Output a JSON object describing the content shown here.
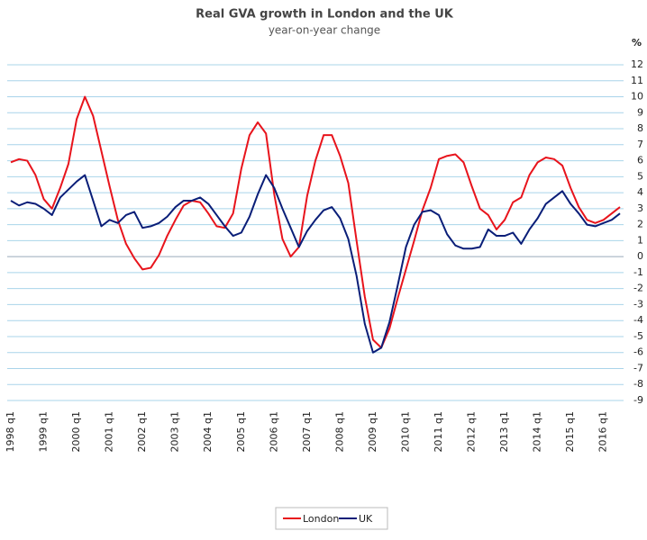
{
  "chart_data": {
    "type": "line",
    "title": "Real GVA growth in London and the UK",
    "subtitle": "year-on-year change",
    "ylabel": "%",
    "categories": [
      "1998 q1",
      null,
      null,
      null,
      "1999 q1",
      null,
      null,
      null,
      "2000 q1",
      null,
      null,
      null,
      "2001 q1",
      null,
      null,
      null,
      "2002 q1",
      null,
      null,
      null,
      "2003 q1",
      null,
      null,
      null,
      "2004 q1",
      null,
      null,
      null,
      "2005 q1",
      null,
      null,
      null,
      "2006 q1",
      null,
      null,
      null,
      "2007 q1",
      null,
      null,
      null,
      "2008 q1",
      null,
      null,
      null,
      "2009 q1",
      null,
      null,
      null,
      "2010 q1",
      null,
      null,
      null,
      "2011 q1",
      null,
      null,
      null,
      "2012 q1",
      null,
      null,
      null,
      "2013 q1",
      null,
      null,
      null,
      "2014 q1",
      null,
      null,
      null,
      "2015 q1",
      null,
      null,
      null,
      "2016 q1",
      null,
      null
    ],
    "series": [
      {
        "name": "London",
        "color": "#e8141c",
        "values": [
          5.9,
          6.1,
          6.0,
          5.1,
          3.6,
          3.0,
          4.3,
          5.8,
          8.6,
          10.0,
          8.8,
          6.6,
          4.4,
          2.3,
          0.8,
          -0.1,
          -0.8,
          -0.7,
          0.1,
          1.3,
          2.3,
          3.2,
          3.5,
          3.4,
          2.7,
          1.9,
          1.8,
          2.7,
          5.5,
          7.6,
          8.4,
          7.7,
          3.9,
          1.1,
          0.0,
          0.6,
          3.8,
          6.0,
          7.6,
          7.6,
          6.3,
          4.6,
          1.0,
          -2.5,
          -5.2,
          -5.7,
          -4.5,
          -2.6,
          -0.8,
          1.0,
          2.9,
          4.3,
          6.1,
          6.3,
          6.4,
          5.9,
          4.4,
          3.0,
          2.6,
          1.7,
          2.3,
          3.4,
          3.7,
          5.1,
          5.9,
          6.2,
          6.1,
          5.7,
          4.3,
          3.1,
          2.3,
          2.1,
          2.3,
          2.7,
          3.1
        ]
      },
      {
        "name": "UK",
        "color": "#0a1e78",
        "values": [
          3.5,
          3.2,
          3.4,
          3.3,
          3.0,
          2.6,
          3.7,
          4.2,
          4.7,
          5.1,
          3.5,
          1.9,
          2.3,
          2.1,
          2.6,
          2.8,
          1.8,
          1.9,
          2.1,
          2.5,
          3.1,
          3.5,
          3.5,
          3.7,
          3.3,
          2.6,
          1.9,
          1.3,
          1.5,
          2.5,
          3.9,
          5.1,
          4.3,
          3.0,
          1.8,
          0.6,
          1.6,
          2.3,
          2.9,
          3.1,
          2.4,
          1.1,
          -1.2,
          -4.2,
          -6.0,
          -5.7,
          -4.1,
          -1.8,
          0.6,
          2.0,
          2.8,
          2.9,
          2.6,
          1.4,
          0.7,
          0.5,
          0.5,
          0.6,
          1.7,
          1.3,
          1.3,
          1.5,
          0.8,
          1.7,
          2.4,
          3.3,
          3.7,
          4.1,
          3.3,
          2.7,
          2.0,
          1.9,
          2.1,
          2.3,
          2.7
        ]
      }
    ],
    "ylim": [
      -9,
      12
    ],
    "yticks": [
      -9,
      -8,
      -7,
      -6,
      -5,
      -4,
      -3,
      -2,
      -1,
      0,
      1,
      2,
      3,
      4,
      5,
      6,
      7,
      8,
      9,
      10,
      11,
      12
    ],
    "grid": true
  }
}
